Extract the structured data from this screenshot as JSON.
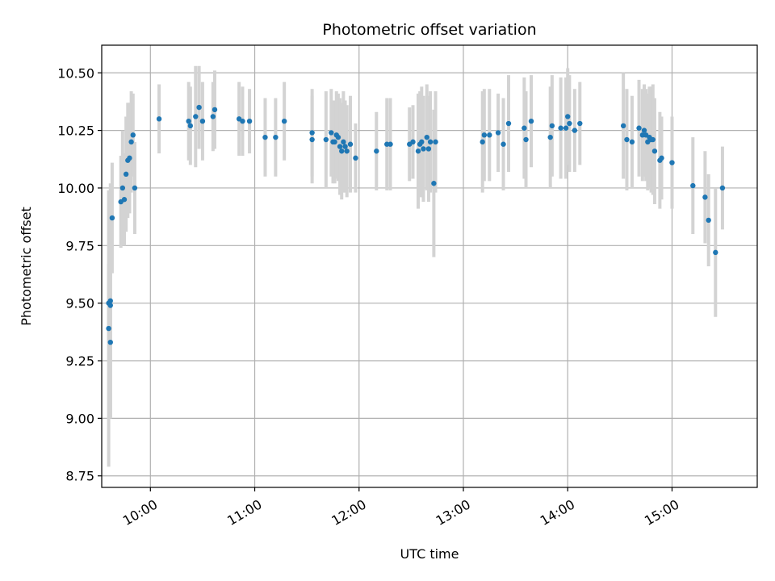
{
  "chart_data": {
    "type": "scatter",
    "title": "Photometric offset variation",
    "xlabel": "UTC time",
    "ylabel": "Photometric offset",
    "x_ticks": [
      "10:00",
      "11:00",
      "12:00",
      "13:00",
      "14:00",
      "15:00"
    ],
    "y_ticks": [
      "8.75",
      "9.00",
      "9.25",
      "9.50",
      "9.75",
      "10.00",
      "10.25",
      "10.50"
    ],
    "xlim": [
      "09:32",
      "15:49"
    ],
    "ylim": [
      8.7,
      10.62
    ],
    "grid": true,
    "marker_color": "#1f77b4",
    "errorbar_color": "#d3d3d3",
    "series": [
      {
        "x": [
          "09:36",
          "09:36",
          "09:37",
          "09:37",
          "09:37",
          "09:38",
          "09:43",
          "09:44",
          "09:45",
          "09:46",
          "09:47",
          "09:48",
          "09:49",
          "09:50",
          "09:51",
          "10:05",
          "10:22",
          "10:23",
          "10:26",
          "10:28",
          "10:30",
          "10:36",
          "10:37",
          "10:51",
          "10:53",
          "10:57",
          "11:06",
          "11:12",
          "11:17",
          "11:33",
          "11:33",
          "11:41",
          "11:44",
          "11:45",
          "11:46",
          "11:47",
          "11:48",
          "11:49",
          "11:50",
          "11:51",
          "11:52",
          "11:53",
          "11:55",
          "11:58",
          "12:10",
          "12:16",
          "12:18",
          "12:29",
          "12:31",
          "12:34",
          "12:35",
          "12:36",
          "12:37",
          "12:39",
          "12:40",
          "12:41",
          "12:43",
          "12:44",
          "13:11",
          "13:12",
          "13:15",
          "13:20",
          "13:23",
          "13:26",
          "13:35",
          "13:36",
          "13:39",
          "13:50",
          "13:51",
          "13:56",
          "13:59",
          "14:00",
          "14:01",
          "14:04",
          "14:07",
          "14:32",
          "14:34",
          "14:37",
          "14:41",
          "14:43",
          "14:44",
          "14:45",
          "14:46",
          "14:47",
          "14:48",
          "14:49",
          "14:50",
          "14:53",
          "14:54",
          "15:00",
          "15:12",
          "15:19",
          "15:21",
          "15:25",
          "15:29"
        ],
        "y": [
          9.5,
          9.39,
          9.33,
          9.51,
          9.49,
          9.87,
          9.94,
          10.0,
          9.95,
          10.06,
          10.12,
          10.13,
          10.2,
          10.23,
          10.0,
          10.3,
          10.29,
          10.27,
          10.31,
          10.35,
          10.29,
          10.31,
          10.34,
          10.3,
          10.29,
          10.29,
          10.22,
          10.22,
          10.29,
          10.24,
          10.21,
          10.21,
          10.24,
          10.2,
          10.2,
          10.23,
          10.22,
          10.18,
          10.16,
          10.2,
          10.18,
          10.16,
          10.19,
          10.13,
          10.16,
          10.19,
          10.19,
          10.19,
          10.2,
          10.16,
          10.19,
          10.2,
          10.17,
          10.22,
          10.17,
          10.2,
          10.02,
          10.2,
          10.2,
          10.23,
          10.23,
          10.24,
          10.19,
          10.28,
          10.26,
          10.21,
          10.29,
          10.22,
          10.27,
          10.26,
          10.26,
          10.31,
          10.28,
          10.25,
          10.28,
          10.27,
          10.21,
          10.2,
          10.26,
          10.23,
          10.25,
          10.23,
          10.2,
          10.22,
          10.21,
          10.21,
          10.16,
          10.12,
          10.13,
          10.11,
          10.01,
          9.96,
          9.86,
          9.72,
          10.0
        ],
        "err": [
          0.17,
          0.6,
          0.33,
          0.51,
          0.49,
          0.24,
          0.2,
          0.25,
          0.2,
          0.25,
          0.25,
          0.24,
          0.22,
          0.18,
          0.2,
          0.15,
          0.17,
          0.17,
          0.22,
          0.18,
          0.17,
          0.15,
          0.17,
          0.16,
          0.15,
          0.14,
          0.17,
          0.17,
          0.17,
          0.19,
          0.19,
          0.21,
          0.19,
          0.18,
          0.18,
          0.19,
          0.19,
          0.21,
          0.21,
          0.22,
          0.2,
          0.2,
          0.21,
          0.15,
          0.17,
          0.2,
          0.2,
          0.16,
          0.16,
          0.25,
          0.23,
          0.24,
          0.23,
          0.23,
          0.23,
          0.22,
          0.32,
          0.22,
          0.22,
          0.2,
          0.2,
          0.17,
          0.2,
          0.21,
          0.22,
          0.21,
          0.2,
          0.22,
          0.22,
          0.22,
          0.22,
          0.21,
          0.21,
          0.18,
          0.18,
          0.23,
          0.22,
          0.2,
          0.21,
          0.2,
          0.2,
          0.2,
          0.21,
          0.22,
          0.23,
          0.24,
          0.23,
          0.21,
          0.18,
          0.2,
          0.21,
          0.2,
          0.2,
          0.28,
          0.18
        ]
      }
    ]
  }
}
